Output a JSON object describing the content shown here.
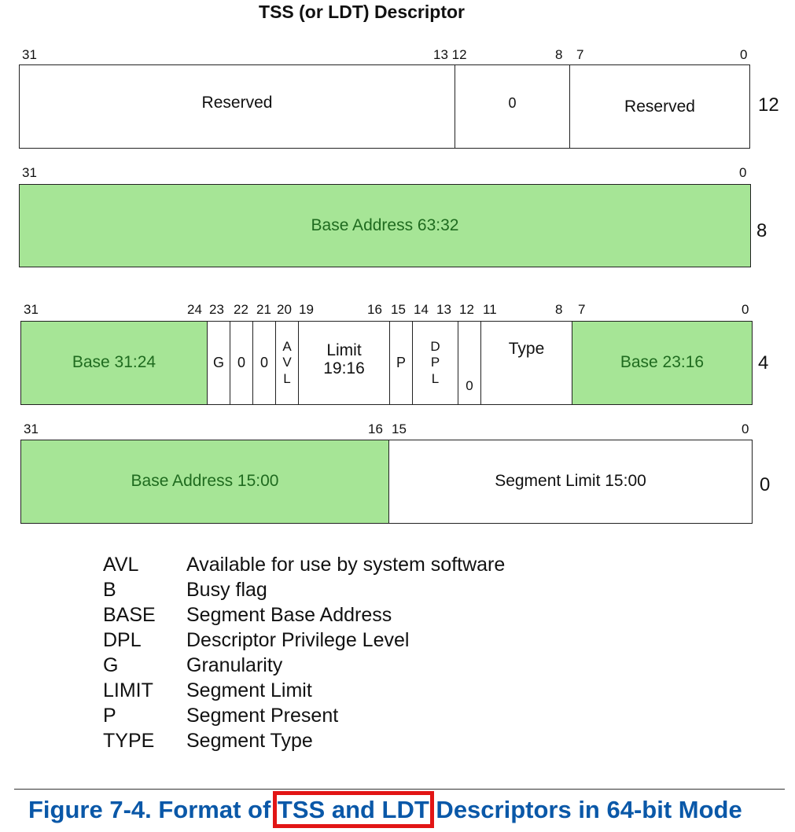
{
  "title": "TSS (or LDT) Descriptor",
  "rows": [
    {
      "offset": "12",
      "bits": [
        "31",
        "13 12",
        "8",
        "7",
        "0"
      ],
      "fields": [
        "Reserved",
        "0",
        "Reserved"
      ]
    },
    {
      "offset": "8",
      "bits": [
        "31",
        "0"
      ],
      "fields": [
        "Base Address 63:32"
      ]
    },
    {
      "offset": "4",
      "bits": [
        "31",
        "24",
        "23",
        "22",
        "21",
        "20",
        "19",
        "16",
        "15",
        "14",
        "13",
        "12",
        "11",
        "8",
        "7",
        "0"
      ],
      "fields": [
        "Base 31:24",
        "G",
        "0",
        "0",
        [
          "A",
          "V",
          "L"
        ],
        [
          "Limit",
          "19:16"
        ],
        "P",
        [
          "D",
          "P",
          "L"
        ],
        "0",
        "Type",
        "Base 23:16"
      ]
    },
    {
      "offset": "0",
      "bits": [
        "31",
        "16",
        "15",
        "0"
      ],
      "fields": [
        "Base Address 15:00",
        "Segment Limit 15:00"
      ]
    }
  ],
  "legend": [
    {
      "key": "AVL",
      "desc": "Available for use by system software"
    },
    {
      "key": "B",
      "desc": "Busy flag"
    },
    {
      "key": "BASE",
      "desc": "Segment Base Address"
    },
    {
      "key": "DPL",
      "desc": "Descriptor Privilege Level"
    },
    {
      "key": "G",
      "desc": "Granularity"
    },
    {
      "key": "LIMIT",
      "desc": "Segment Limit"
    },
    {
      "key": "P",
      "desc": "Segment Present"
    },
    {
      "key": "TYPE",
      "desc": "Segment Type"
    }
  ],
  "caption": {
    "prefix": "Figure 7-4.  Format of ",
    "highlight": "TSS and LDT",
    "suffix": " Descriptors in 64-bit Mode"
  },
  "colors": {
    "field_green": "#a6e596",
    "green_text": "#1f6b1f",
    "caption_blue": "#0a58a8",
    "highlight_red": "#e21515"
  }
}
